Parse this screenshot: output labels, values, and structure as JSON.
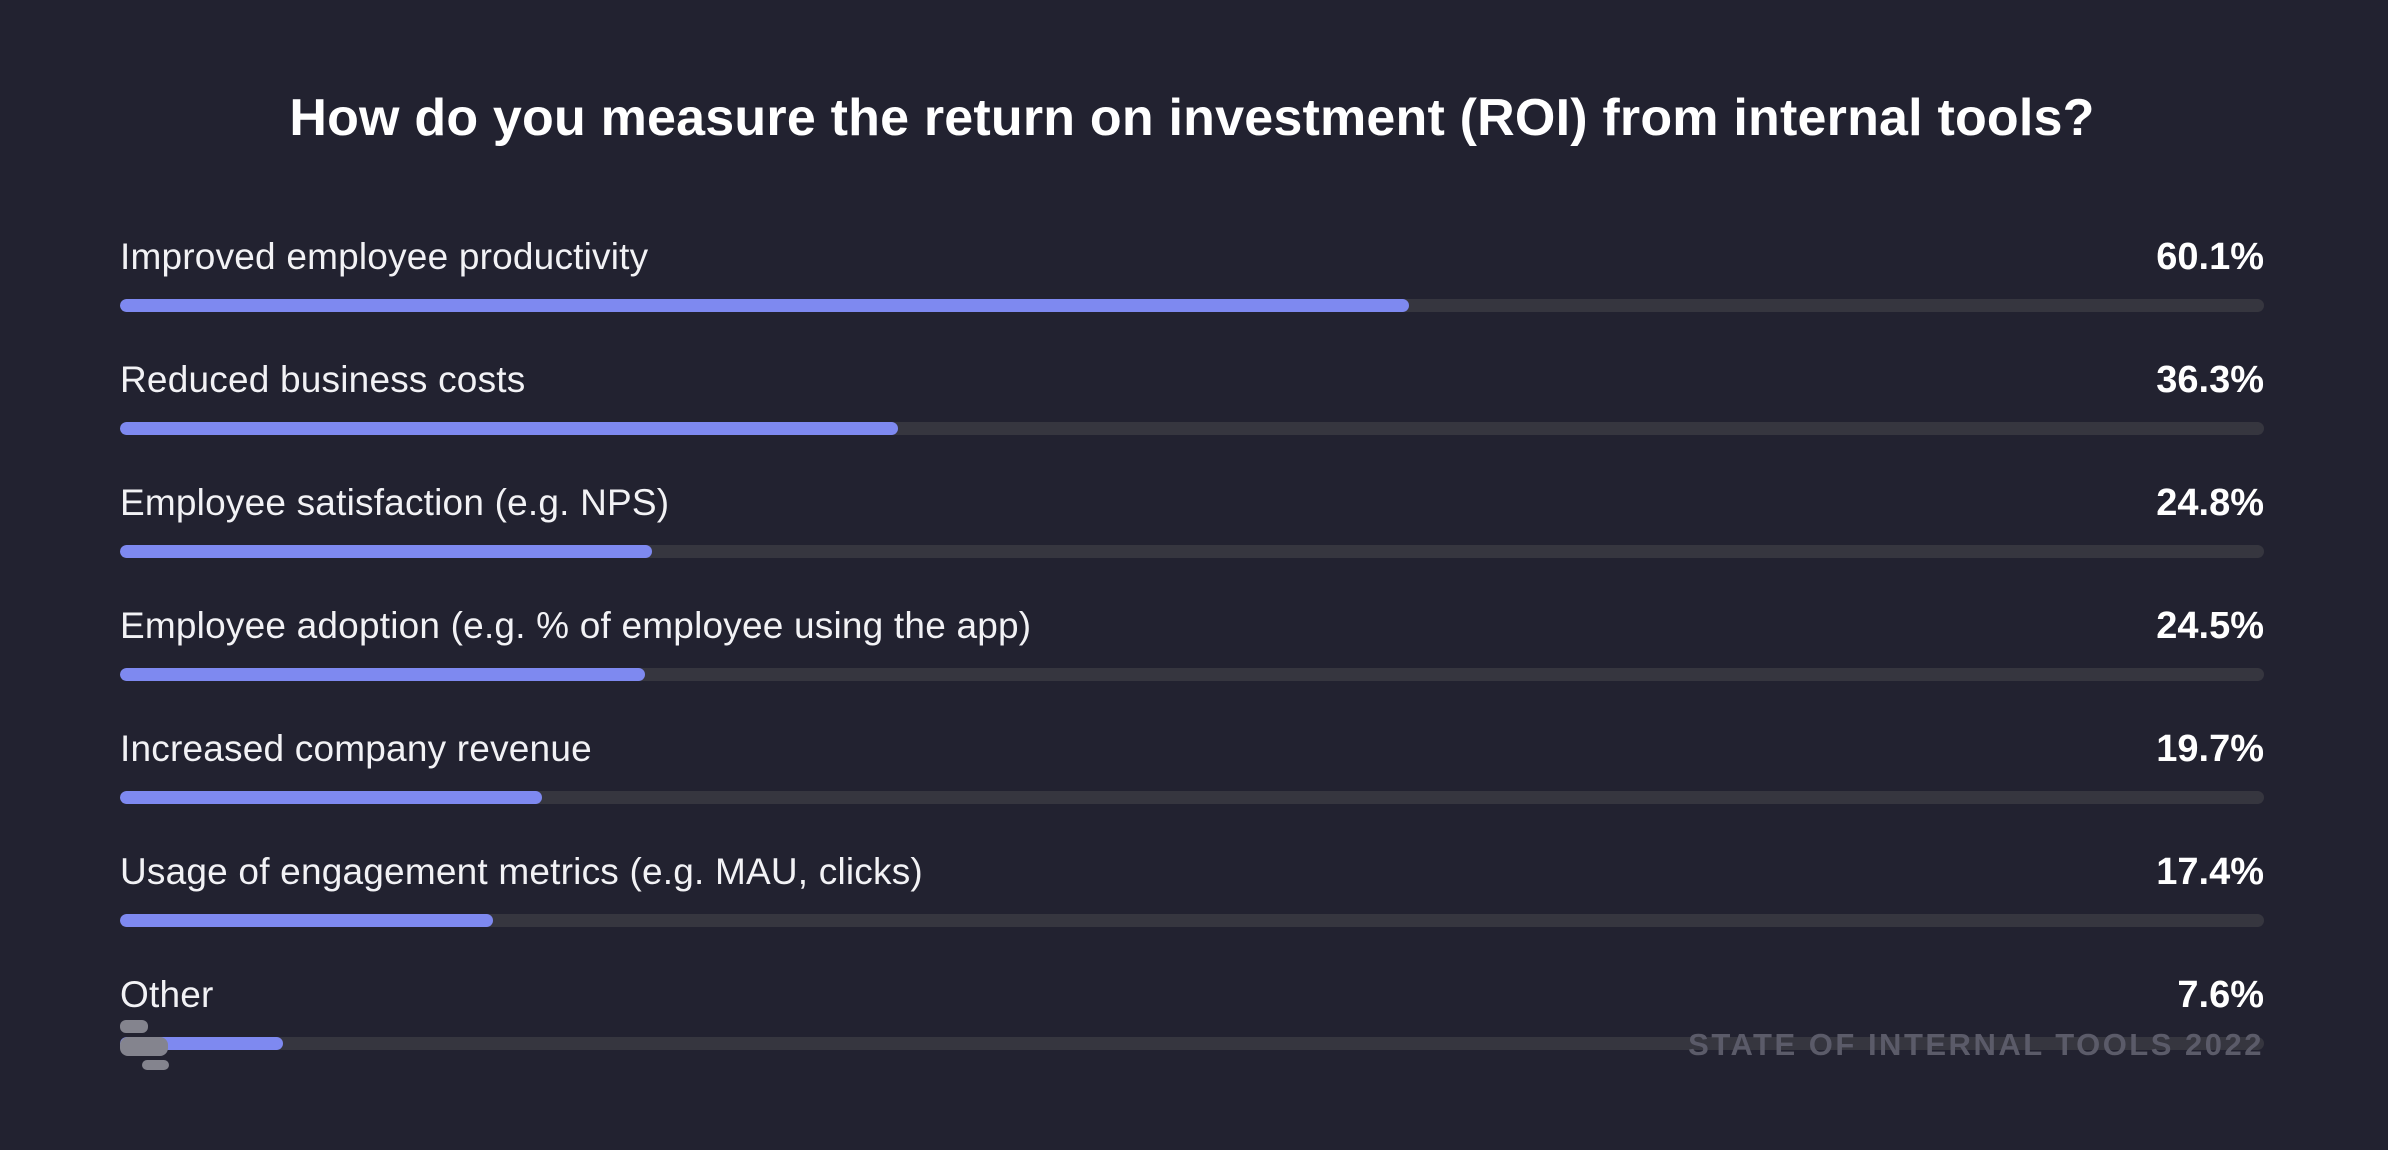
{
  "colors": {
    "background": "#222230",
    "bar_fill": "#7e89f0",
    "bar_track": "#36363f",
    "label_text": "#f2f2f5",
    "value_text": "#ffffff",
    "footer_text": "#5b5b69",
    "logo_gray": "#84848e"
  },
  "header": {
    "title": "How do you measure the return on investment (ROI) from internal tools?"
  },
  "chart_data": {
    "type": "bar",
    "orientation": "horizontal",
    "title": "How do you measure the return on investment (ROI) from internal tools?",
    "categories": [
      "Improved employee productivity",
      "Reduced business costs",
      "Employee satisfaction (e.g. NPS)",
      "Employee adoption (e.g. % of employee using the app)",
      "Increased company revenue",
      "Usage of engagement metrics (e.g. MAU, clicks)",
      "Other"
    ],
    "values": [
      60.1,
      36.3,
      24.8,
      24.5,
      19.7,
      17.4,
      7.6
    ],
    "value_labels": [
      "60.1%",
      "36.3%",
      "24.8%",
      "24.5%",
      "19.7%",
      "17.4%",
      "7.6%"
    ],
    "xlabel": "",
    "ylabel": "",
    "xlim": [
      0,
      100
    ],
    "grid": false,
    "legend": false,
    "bar_color": "#7e89f0",
    "track_color": "#36363f"
  },
  "footer": {
    "logo_icon": "retool-logo-icon",
    "source_label": "STATE OF INTERNAL TOOLS 2022"
  }
}
